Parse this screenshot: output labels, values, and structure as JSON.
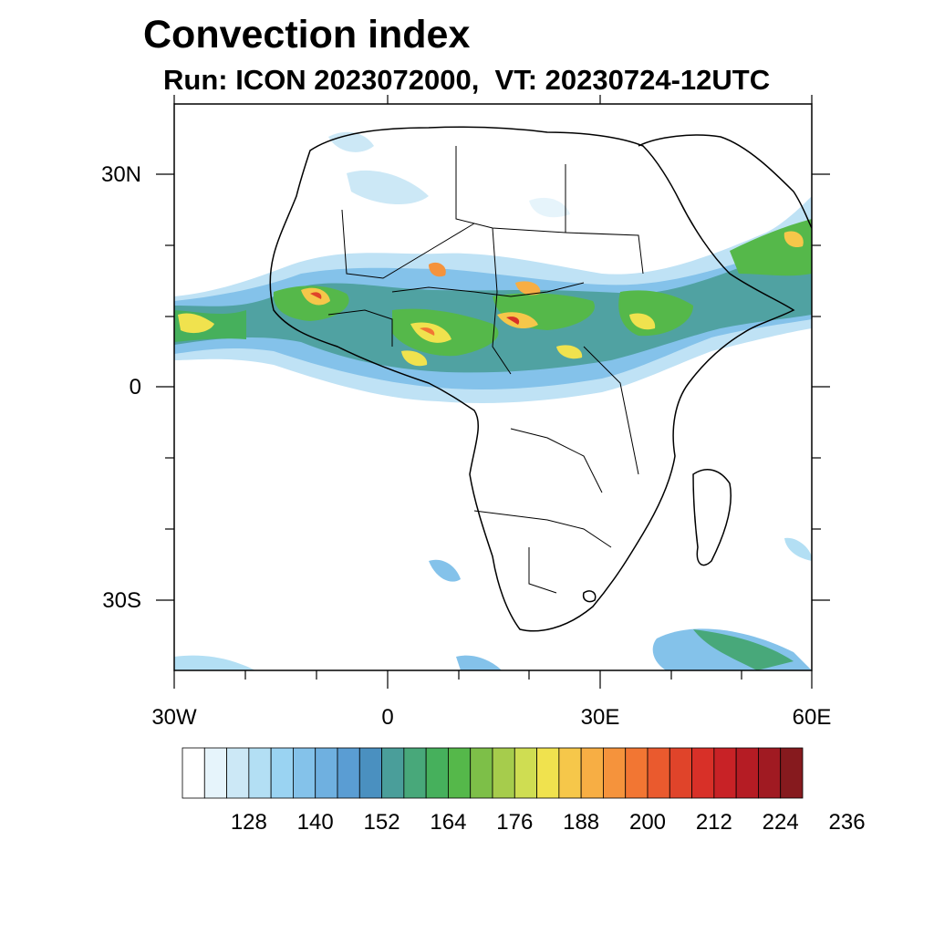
{
  "header": {
    "title": "Convection index",
    "subtitle": "Run: ICON 2023072000,  VT: 20230724-12UTC"
  },
  "map": {
    "region": "Africa",
    "lon_range": [
      -30,
      60
    ],
    "lat_range": [
      -40,
      40
    ],
    "y_tick_labels": [
      "30N",
      "0",
      "30S"
    ],
    "x_tick_labels": [
      "30W",
      "0",
      "30E",
      "60E"
    ],
    "field": "convection index"
  },
  "colorbar": {
    "colors": [
      "#ffffff",
      "#e6f4fb",
      "#cce8f6",
      "#b3dff4",
      "#9ad3f2",
      "#84c2ea",
      "#6fb0e0",
      "#5a9dd3",
      "#4a90c0",
      "#4a9e9a",
      "#48a87a",
      "#46b05c",
      "#55b84a",
      "#7dbf48",
      "#a6cc4c",
      "#cfdd52",
      "#f0e24e",
      "#f6c74a",
      "#f7ae44",
      "#f5933c",
      "#f27633",
      "#ea5a2e",
      "#e0442a",
      "#d83028",
      "#c82226",
      "#b51c24",
      "#a01a22",
      "#861a1e"
    ],
    "labels": [
      "128",
      "140",
      "152",
      "164",
      "176",
      "188",
      "200",
      "212",
      "224",
      "236"
    ]
  }
}
